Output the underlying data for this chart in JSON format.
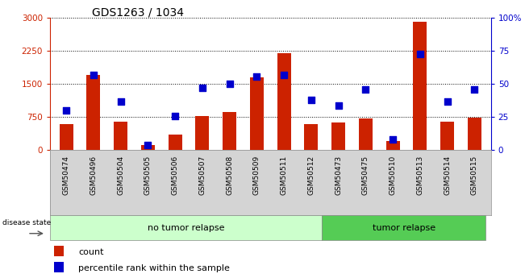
{
  "title": "GDS1263 / 1034",
  "samples": [
    "GSM50474",
    "GSM50496",
    "GSM50504",
    "GSM50505",
    "GSM50506",
    "GSM50507",
    "GSM50508",
    "GSM50509",
    "GSM50511",
    "GSM50512",
    "GSM50473",
    "GSM50475",
    "GSM50510",
    "GSM50513",
    "GSM50514",
    "GSM50515"
  ],
  "counts": [
    600,
    1700,
    650,
    120,
    350,
    780,
    870,
    1650,
    2200,
    600,
    620,
    720,
    200,
    2920,
    650,
    730
  ],
  "percentiles": [
    30,
    57,
    37,
    4,
    26,
    47,
    50,
    56,
    57,
    38,
    34,
    46,
    8,
    73,
    37,
    46
  ],
  "no_tumor_count": 10,
  "tumor_count": 6,
  "bar_color": "#cc2200",
  "dot_color": "#0000cc",
  "left_ylim": [
    0,
    3000
  ],
  "right_ylim": [
    0,
    100
  ],
  "left_yticks": [
    0,
    750,
    1500,
    2250,
    3000
  ],
  "right_yticks": [
    0,
    25,
    50,
    75,
    100
  ],
  "right_yticklabels": [
    "0",
    "25",
    "50",
    "75",
    "100%"
  ],
  "group_no_tumor_color": "#ccffcc",
  "group_tumor_color": "#55cc55",
  "group_label_no_tumor": "no tumor relapse",
  "group_label_tumor": "tumor relapse",
  "disease_state_label": "disease state",
  "legend_count_label": "count",
  "legend_percentile_label": "percentile rank within the sample",
  "title_fontsize": 10,
  "tick_fontsize": 7.5,
  "xtick_fontsize": 6.5,
  "group_fontsize": 8
}
